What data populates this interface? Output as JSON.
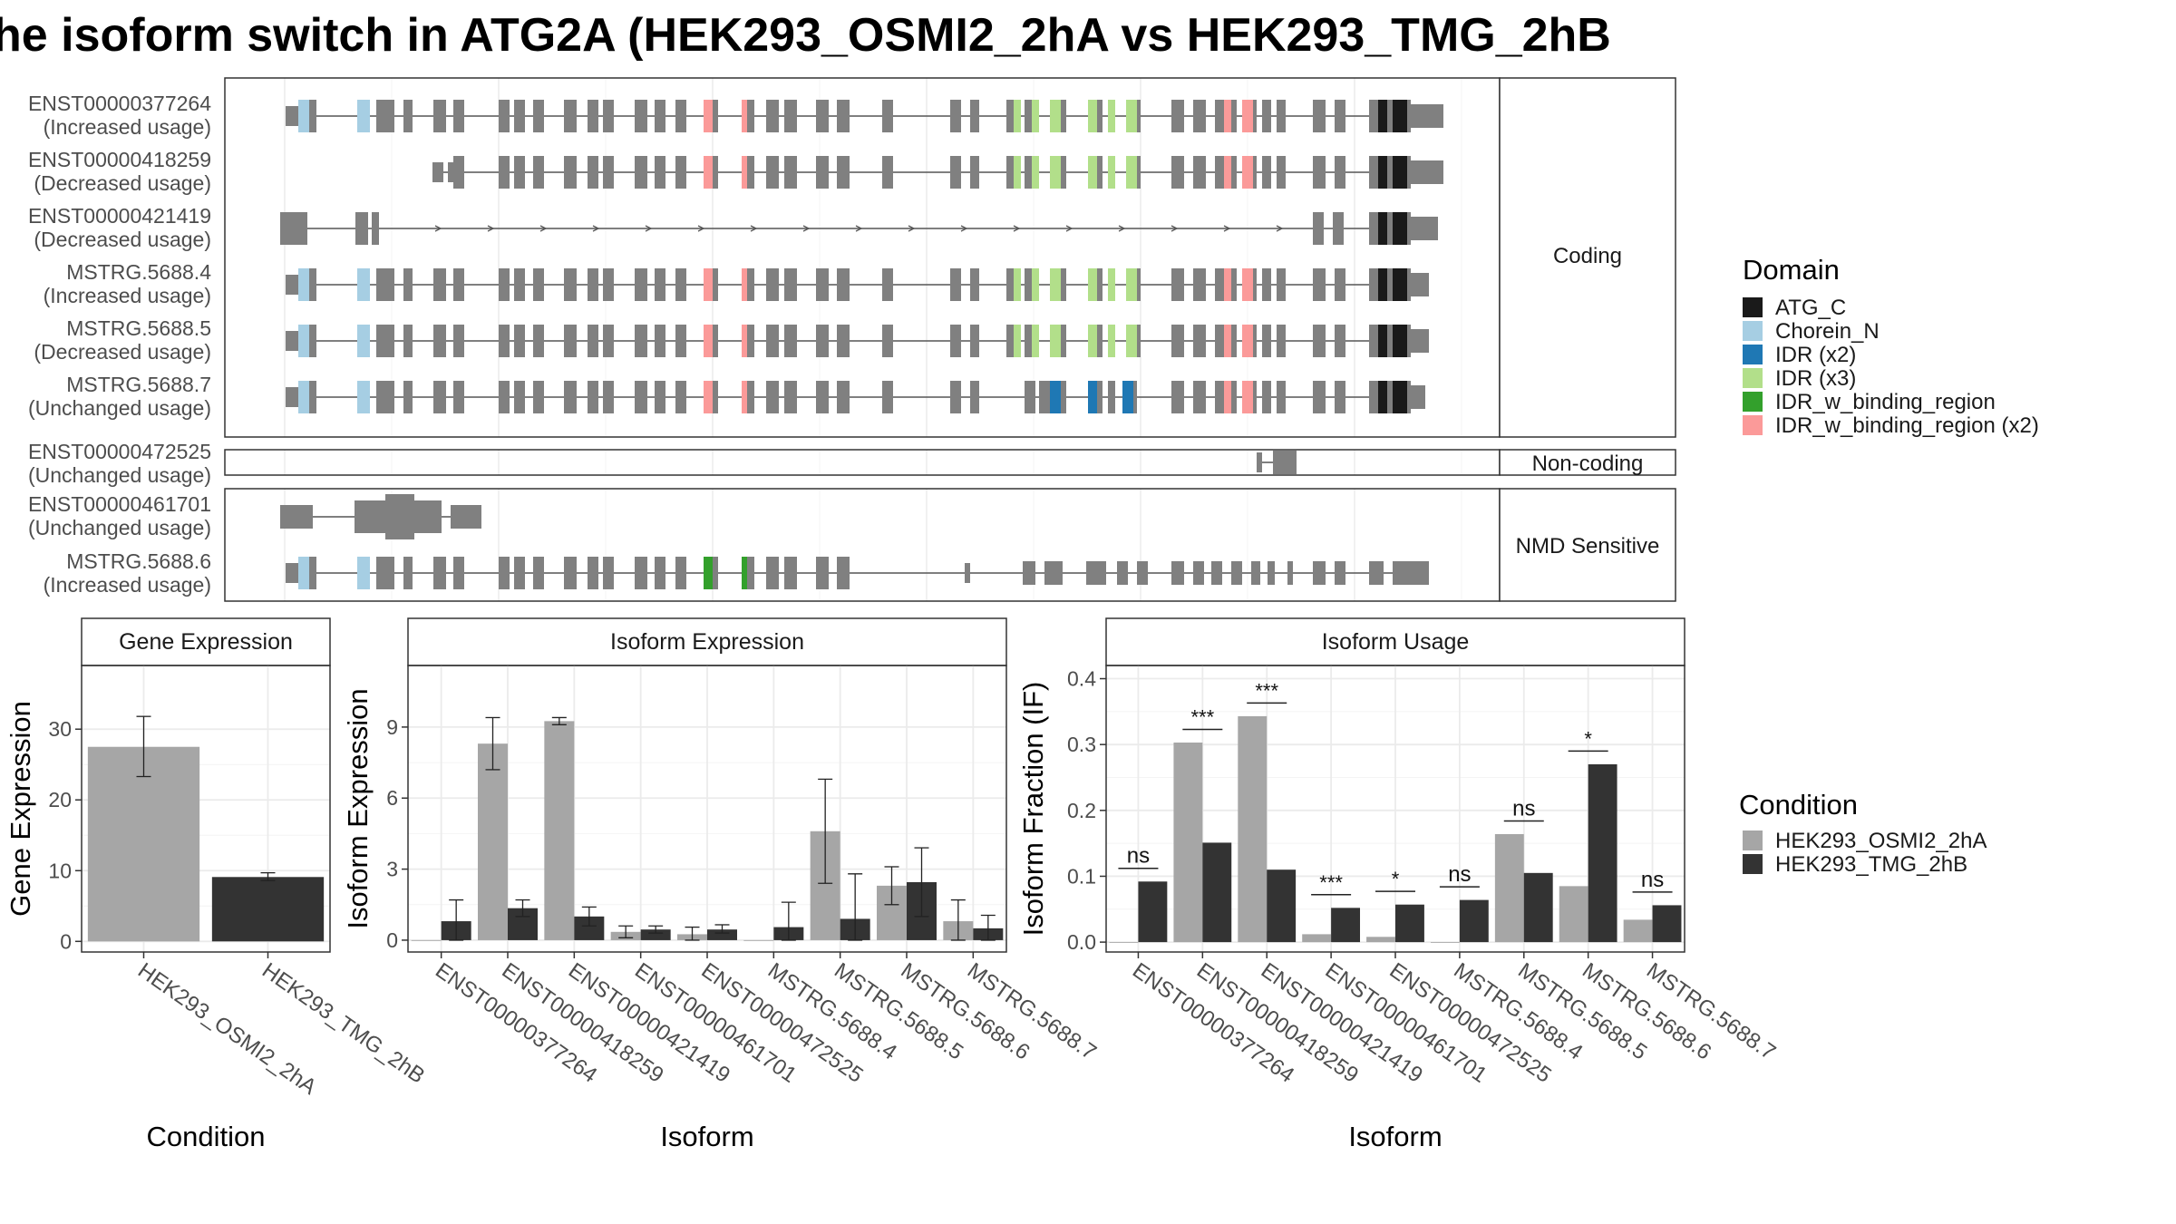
{
  "title": "he isoform switch in ATG2A (HEK293_OSMI2_2hA vs HEK293_TMG_2hB",
  "colors": {
    "ATG_C": "#1a1a1a",
    "Chorein_N": "#a6cee3",
    "IDR_x2": "#1f78b4",
    "IDR_x3": "#b2df8a",
    "IDR_w_binding_region": "#33a02c",
    "IDR_w_binding_region_x2": "#fb9a99",
    "exon": "#808080",
    "cond_A": "#a6a6a6",
    "cond_B": "#333333"
  },
  "domain_legend": {
    "title": "Domain",
    "items": [
      {
        "label": "ATG_C",
        "color": "#1a1a1a"
      },
      {
        "label": "Chorein_N",
        "color": "#a6cee3"
      },
      {
        "label": "IDR (x2)",
        "color": "#1f78b4"
      },
      {
        "label": "IDR (x3)",
        "color": "#b2df8a"
      },
      {
        "label": "IDR_w_binding_region",
        "color": "#33a02c"
      },
      {
        "label": "IDR_w_binding_region (x2)",
        "color": "#fb9a99"
      }
    ]
  },
  "condition_legend": {
    "title": "Condition",
    "items": [
      {
        "label": "HEK293_OSMI2_2hA",
        "color": "#a6a6a6"
      },
      {
        "label": "HEK293_TMG_2hB",
        "color": "#333333"
      }
    ]
  },
  "structure": {
    "groups": [
      {
        "label": "Coding",
        "transcripts": [
          {
            "id": "ENST00000377264",
            "usage": "(Increased usage)"
          },
          {
            "id": "ENST00000418259",
            "usage": "(Decreased usage)"
          },
          {
            "id": "ENST00000421419",
            "usage": "(Decreased usage)"
          },
          {
            "id": "MSTRG.5688.4",
            "usage": "(Increased usage)"
          },
          {
            "id": "MSTRG.5688.5",
            "usage": "(Decreased usage)"
          },
          {
            "id": "MSTRG.5688.7",
            "usage": "(Unchanged usage)"
          }
        ]
      },
      {
        "label": "Non-coding",
        "transcripts": [
          {
            "id": "ENST00000472525",
            "usage": "(Unchanged usage)"
          }
        ]
      },
      {
        "label": "NMD Sensitive",
        "transcripts": [
          {
            "id": "ENST00000461701",
            "usage": "(Unchanged usage)"
          },
          {
            "id": "MSTRG.5688.6",
            "usage": "(Increased usage)"
          }
        ]
      }
    ]
  },
  "chart_data": [
    {
      "type": "bar",
      "title": "Gene Expression",
      "xlabel": "Condition",
      "ylabel": "Gene Expression",
      "categories": [
        "HEK293_OSMI2_2hA",
        "HEK293_TMG_2hB"
      ],
      "values": [
        27.5,
        9.1
      ],
      "errors": [
        [
          23.3,
          31.8
        ],
        [
          8.6,
          9.7
        ]
      ],
      "ylim": [
        -1.5,
        39
      ],
      "yticks": [
        "0",
        "10",
        "20",
        "30"
      ],
      "grid": true
    },
    {
      "type": "bar",
      "title": "Isoform Expression",
      "xlabel": "Isoform",
      "ylabel": "Isoform Expression",
      "categories": [
        "ENST00000377264",
        "ENST00000418259",
        "ENST00000421419",
        "ENST00000461701",
        "ENST00000472525",
        "MSTRG.5688.4",
        "MSTRG.5688.5",
        "MSTRG.5688.6",
        "MSTRG.5688.7"
      ],
      "series": [
        {
          "name": "HEK293_OSMI2_2hA",
          "values": [
            0.0,
            8.3,
            9.25,
            0.35,
            0.25,
            0.0,
            4.6,
            2.3,
            0.8
          ],
          "errors": [
            [
              0.0,
              0.0
            ],
            [
              7.2,
              9.4
            ],
            [
              9.1,
              9.4
            ],
            [
              0.1,
              0.6
            ],
            [
              0.0,
              0.55
            ],
            [
              0.0,
              0.0
            ],
            [
              2.4,
              6.8
            ],
            [
              1.5,
              3.1
            ],
            [
              0.0,
              1.7
            ]
          ]
        },
        {
          "name": "HEK293_TMG_2hB",
          "values": [
            0.8,
            1.35,
            1.0,
            0.45,
            0.45,
            0.55,
            0.9,
            2.45,
            0.5
          ],
          "errors": [
            [
              0.0,
              1.7
            ],
            [
              1.0,
              1.7
            ],
            [
              0.6,
              1.4
            ],
            [
              0.3,
              0.6
            ],
            [
              0.3,
              0.65
            ],
            [
              0.0,
              1.6
            ],
            [
              0.0,
              2.8
            ],
            [
              1.0,
              3.9
            ],
            [
              0.0,
              1.05
            ]
          ]
        }
      ],
      "ylim": [
        -0.5,
        11.6
      ],
      "yticks": [
        "0",
        "3",
        "6",
        "9"
      ],
      "grid": true
    },
    {
      "type": "bar",
      "title": "Isoform Usage",
      "xlabel": "Isoform",
      "ylabel": "Isoform Fraction (IF)",
      "categories": [
        "ENST00000377264",
        "ENST00000418259",
        "ENST00000421419",
        "ENST00000461701",
        "ENST00000472525",
        "MSTRG.5688.4",
        "MSTRG.5688.5",
        "MSTRG.5688.6",
        "MSTRG.5688.7"
      ],
      "series": [
        {
          "name": "HEK293_OSMI2_2hA",
          "values": [
            0.0,
            0.303,
            0.343,
            0.012,
            0.008,
            0.0,
            0.164,
            0.085,
            0.034
          ]
        },
        {
          "name": "HEK293_TMG_2hB",
          "values": [
            0.092,
            0.151,
            0.11,
            0.052,
            0.057,
            0.064,
            0.105,
            0.27,
            0.056
          ]
        }
      ],
      "significance": [
        "ns",
        "***",
        "***",
        "***",
        "*",
        "ns",
        "ns",
        "*",
        "ns"
      ],
      "sig_heights": [
        0.112,
        0.323,
        0.363,
        0.072,
        0.077,
        0.084,
        0.184,
        0.29,
        0.076
      ],
      "ylim": [
        -0.015,
        0.42
      ],
      "yticks": [
        "0.0",
        "0.1",
        "0.2",
        "0.3",
        "0.4"
      ],
      "grid": true
    }
  ]
}
